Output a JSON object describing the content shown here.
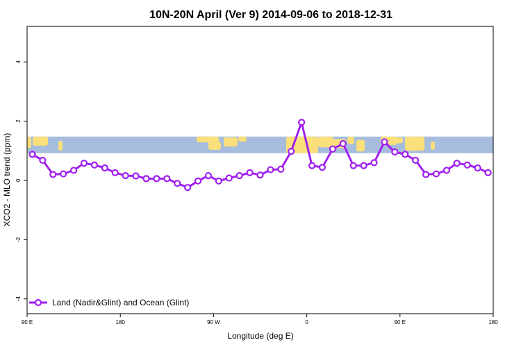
{
  "chart_data": {
    "type": "line",
    "title": "10N-20N April (Ver 9)   2014-09-06 to 2018-12-31",
    "xlabel": "Longitude (deg E)",
    "ylabel": "XCO2 - MLO trend (ppm)",
    "xlim": [
      90,
      540
    ],
    "ylim": [
      -4.5,
      5.2
    ],
    "x_ticks": [
      {
        "value": 90,
        "label": "90 E"
      },
      {
        "value": 180,
        "label": "180"
      },
      {
        "value": 270,
        "label": "90 W"
      },
      {
        "value": 360,
        "label": "0"
      },
      {
        "value": 450,
        "label": "90 E"
      },
      {
        "value": 540,
        "label": "180"
      }
    ],
    "y_ticks": [
      -4,
      -2,
      0,
      2,
      4
    ],
    "grid": false,
    "legend_position": "bottom-left",
    "band": {
      "description": "map strip 10N-20N",
      "ymin": 0.92,
      "ymax": 1.48,
      "ocean_color": "#A7BDDD",
      "land_color": "#FADF7B"
    },
    "series": [
      {
        "name": "Land (Nadir&Glint) and Ocean (Glint)",
        "color": "#A020F0",
        "x": [
          95,
          105,
          115,
          125,
          135,
          145,
          155,
          165,
          175,
          185,
          195,
          205,
          215,
          225,
          235,
          245,
          255,
          265,
          275,
          285,
          295,
          305,
          315,
          325,
          335,
          345,
          355,
          365,
          375,
          385,
          395,
          405,
          415,
          425,
          435,
          445,
          455,
          465,
          475,
          485,
          495,
          505,
          515,
          525,
          535
        ],
        "y": [
          0.88,
          0.68,
          0.2,
          0.22,
          0.34,
          0.58,
          0.52,
          0.42,
          0.26,
          0.16,
          0.15,
          0.06,
          0.06,
          0.06,
          -0.1,
          -0.24,
          -0.02,
          0.16,
          -0.02,
          0.08,
          0.16,
          0.26,
          0.18,
          0.36,
          0.38,
          0.98,
          1.96,
          0.5,
          0.44,
          1.06,
          1.24,
          0.5,
          0.5,
          0.6,
          1.3,
          0.96,
          0.88,
          0.68,
          0.2,
          0.22,
          0.34,
          0.58,
          0.52,
          0.42,
          0.26
        ]
      }
    ]
  }
}
